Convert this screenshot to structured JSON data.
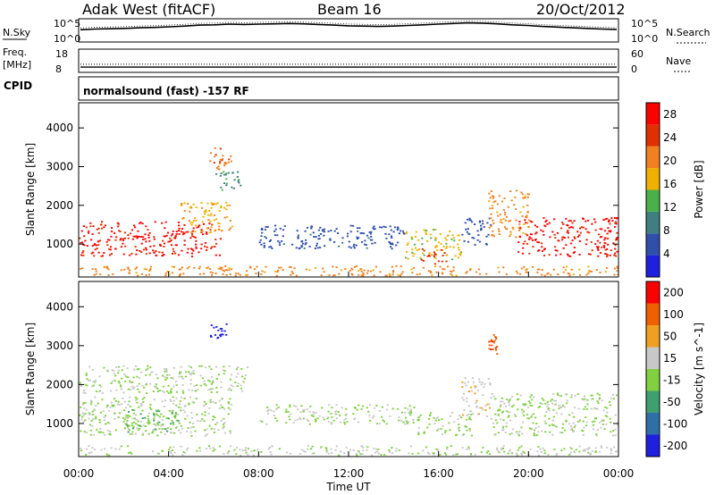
{
  "header": {
    "station": "Adak West (fitACF)",
    "beam": "Beam 16",
    "date": "20/Oct/2012"
  },
  "noise_panel": {
    "left_label": "N.Sky",
    "right_label": "N.Search",
    "left_ticks": [
      "10^5",
      "10^0"
    ],
    "right_ticks": [
      "10^5",
      "10^0"
    ],
    "sky_series": [
      3.2,
      3.4,
      3.5,
      3.6,
      3.8,
      3.9,
      4.1,
      4.3,
      4.6,
      4.7,
      4.9,
      4.8,
      4.9,
      5.0,
      5.1,
      5.0,
      4.8,
      4.6,
      4.4,
      4.3,
      4.2,
      4.3,
      4.5,
      4.7,
      4.9,
      5.1,
      5.3,
      5.2,
      5.0,
      4.7,
      4.5,
      4.2,
      4.0,
      3.8,
      3.6,
      3.4,
      3.3
    ]
  },
  "freq_panel": {
    "left_label_line1": "Freq.",
    "left_label_line2": "[MHz]",
    "right_label": "Nave",
    "left_ticks": [
      "18",
      "8"
    ],
    "right_ticks": [
      "60",
      "0"
    ],
    "freq_mhz": 10.3,
    "nave": 21
  },
  "cpid": {
    "label": "CPID",
    "text": "normalsound (fast) -157 RF"
  },
  "chart_data": [
    {
      "type": "heatmap",
      "title": "",
      "parameter": "Power",
      "xlabel": "",
      "ylabel": "Slant Range [km]",
      "xlim": [
        0,
        24
      ],
      "ylim": [
        150,
        4650
      ],
      "yticks": [
        1000,
        2000,
        3000,
        4000
      ],
      "colorbar": {
        "label": "Power [dB]",
        "ticks": [
          4,
          8,
          12,
          16,
          20,
          24,
          28
        ],
        "range": [
          0,
          30
        ],
        "colors": [
          "#1f1fe0",
          "#2f4fa8",
          "#3f7f7f",
          "#4ab04a",
          "#f0b000",
          "#f08020",
          "#e03000",
          "#ff0000"
        ]
      },
      "regions": [
        {
          "t0": 0.0,
          "t1": 6.3,
          "r0": 700,
          "r1": 1600,
          "value": 27
        },
        {
          "t0": 4.5,
          "t1": 6.8,
          "r0": 1300,
          "r1": 2100,
          "value": 18
        },
        {
          "t0": 5.8,
          "t1": 6.8,
          "r0": 2900,
          "r1": 3500,
          "value": 22
        },
        {
          "t0": 6.0,
          "t1": 7.2,
          "r0": 2400,
          "r1": 2900,
          "value": 10
        },
        {
          "t0": 8.0,
          "t1": 14.5,
          "r0": 900,
          "r1": 1500,
          "value": 6
        },
        {
          "t0": 14.5,
          "t1": 17.0,
          "r0": 600,
          "r1": 1400,
          "value": 16
        },
        {
          "t0": 15.2,
          "t1": 16.4,
          "r0": 500,
          "r1": 900,
          "value": 24
        },
        {
          "t0": 17.0,
          "t1": 18.3,
          "r0": 1000,
          "r1": 1700,
          "value": 6
        },
        {
          "t0": 18.2,
          "t1": 20.0,
          "r0": 1200,
          "r1": 2400,
          "value": 20
        },
        {
          "t0": 19.5,
          "t1": 24.0,
          "r0": 700,
          "r1": 1700,
          "value": 27
        },
        {
          "t0": 0.0,
          "t1": 24.0,
          "r0": 200,
          "r1": 450,
          "value": 20
        }
      ]
    },
    {
      "type": "heatmap",
      "title": "",
      "parameter": "Velocity",
      "xlabel": "Time UT",
      "ylabel": "Slant Range [km]",
      "xlim": [
        0,
        24
      ],
      "ylim": [
        150,
        4650
      ],
      "xticks": [
        "00:00",
        "04:00",
        "08:00",
        "12:00",
        "16:00",
        "20:00",
        "00:00"
      ],
      "yticks": [
        1000,
        2000,
        3000,
        4000
      ],
      "colorbar": {
        "label": "Velocity [m s^-1]",
        "ticks": [
          "200",
          "100",
          "50",
          "15",
          "-15",
          "-50",
          "-100",
          "-200"
        ],
        "range": [
          -250,
          250
        ],
        "colors": [
          "#1f1fe0",
          "#2f6fa8",
          "#3f9f6f",
          "#80d040",
          "#c8c8c8",
          "#f0a020",
          "#f06000",
          "#ff0000"
        ]
      },
      "regions": [
        {
          "t0": 0.0,
          "t1": 6.8,
          "r0": 700,
          "r1": 1700,
          "value": 0
        },
        {
          "t0": 2.0,
          "t1": 4.5,
          "r0": 800,
          "r1": 1400,
          "value": -60
        },
        {
          "t0": 5.8,
          "t1": 6.6,
          "r0": 3200,
          "r1": 3600,
          "value": -220
        },
        {
          "t0": 0.0,
          "t1": 7.5,
          "r0": 1800,
          "r1": 2500,
          "value": 0
        },
        {
          "t0": 8.0,
          "t1": 15.0,
          "r0": 1000,
          "r1": 1500,
          "value": 0
        },
        {
          "t0": 15.0,
          "t1": 17.5,
          "r0": 700,
          "r1": 1300,
          "value": -5
        },
        {
          "t0": 17.0,
          "t1": 18.3,
          "r0": 1200,
          "r1": 2200,
          "value": 40
        },
        {
          "t0": 18.3,
          "t1": 24.0,
          "r0": 700,
          "r1": 1800,
          "value": 0
        },
        {
          "t0": 18.2,
          "t1": 18.6,
          "r0": 2800,
          "r1": 3400,
          "value": 180
        },
        {
          "t0": 0.0,
          "t1": 24.0,
          "r0": 200,
          "r1": 450,
          "value": 10
        }
      ]
    }
  ]
}
